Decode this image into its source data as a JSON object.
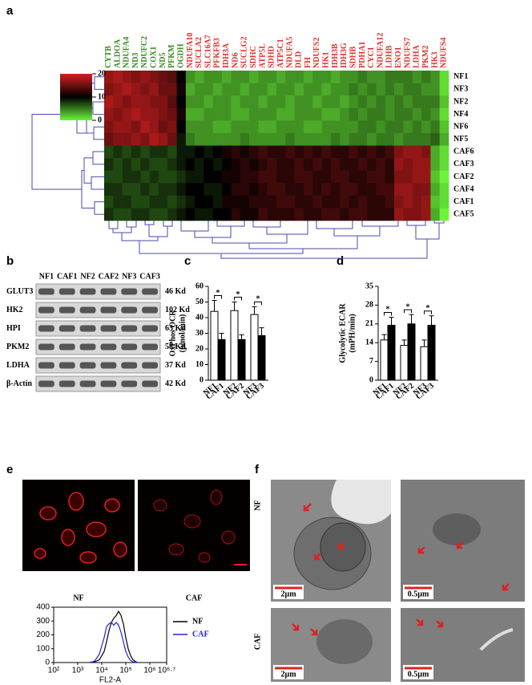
{
  "chart_data": [
    {
      "type": "heatmap",
      "column_groups": [
        {
          "color": "#3a8a1e",
          "labels": [
            "CYTB",
            "ALDOA",
            "NDUFA4",
            "ND3",
            "NDUFC2",
            "COX1",
            "ND5",
            "PFKM",
            "OGDH"
          ]
        },
        {
          "color": "#e0302a",
          "labels": [
            "NDUFA10",
            "SUCLA2",
            "SLC16A7",
            "PFKFB3",
            "IDH3A",
            "ND6",
            "SUCLG2",
            "SDHC",
            "ATP5L",
            "SDHD",
            "ATP5C1",
            "NDUFA5",
            "DLD",
            "FH",
            "NDUFS2",
            "HK1",
            "IDH3B",
            "IDH3G",
            "SDHB",
            "PDHA1",
            "CYC1",
            "NDUFA12",
            "LDHB",
            "ENO1",
            "NDUFS7",
            "LDHA",
            "PKM2",
            "HK3",
            "NDUFS4"
          ]
        }
      ],
      "rows": [
        "NF1",
        "NF3",
        "NF2",
        "NF4",
        "NF6",
        "NF5",
        "CAF6",
        "CAF3",
        "CAF2",
        "CAF4",
        "CAF1",
        "CAF5"
      ],
      "values": [
        [
          17,
          18,
          17,
          16,
          17,
          16,
          15,
          14,
          10,
          4,
          3,
          4,
          4,
          3,
          4,
          4,
          3,
          4,
          4,
          3,
          4,
          4,
          3,
          4,
          4,
          3,
          4,
          4,
          5,
          4,
          4,
          5,
          5,
          5,
          4,
          5,
          4,
          1
        ],
        [
          16,
          17,
          18,
          17,
          16,
          17,
          15,
          15,
          11,
          3,
          4,
          4,
          3,
          4,
          4,
          3,
          4,
          4,
          3,
          4,
          4,
          3,
          4,
          4,
          3,
          4,
          4,
          5,
          4,
          5,
          4,
          5,
          4,
          5,
          5,
          4,
          4,
          1
        ],
        [
          18,
          17,
          16,
          17,
          17,
          16,
          16,
          14,
          10,
          4,
          4,
          3,
          4,
          4,
          3,
          4,
          4,
          3,
          4,
          4,
          3,
          4,
          4,
          3,
          4,
          4,
          3,
          4,
          5,
          4,
          5,
          4,
          5,
          4,
          5,
          5,
          5,
          2
        ],
        [
          17,
          16,
          17,
          18,
          17,
          17,
          16,
          15,
          11,
          3,
          3,
          4,
          4,
          4,
          3,
          3,
          4,
          4,
          4,
          3,
          3,
          4,
          4,
          4,
          3,
          3,
          4,
          5,
          4,
          5,
          5,
          4,
          5,
          5,
          4,
          5,
          4,
          1
        ],
        [
          16,
          17,
          17,
          16,
          18,
          17,
          15,
          16,
          10,
          4,
          4,
          4,
          3,
          3,
          4,
          4,
          4,
          3,
          3,
          4,
          4,
          4,
          3,
          3,
          4,
          4,
          4,
          4,
          5,
          5,
          4,
          5,
          5,
          4,
          5,
          4,
          5,
          2
        ],
        [
          15,
          16,
          16,
          17,
          16,
          18,
          17,
          15,
          9,
          5,
          4,
          4,
          4,
          4,
          4,
          5,
          4,
          4,
          4,
          4,
          5,
          4,
          4,
          4,
          4,
          5,
          4,
          5,
          5,
          4,
          5,
          5,
          4,
          5,
          5,
          5,
          6,
          3
        ],
        [
          7,
          8,
          7,
          8,
          7,
          8,
          8,
          7,
          9,
          9,
          10,
          9,
          10,
          11,
          12,
          11,
          12,
          13,
          12,
          12,
          13,
          12,
          13,
          12,
          13,
          12,
          12,
          13,
          12,
          13,
          12,
          13,
          16,
          17,
          17,
          16,
          3,
          1
        ],
        [
          8,
          7,
          8,
          7,
          8,
          7,
          7,
          8,
          9,
          10,
          9,
          10,
          9,
          10,
          11,
          12,
          11,
          12,
          13,
          12,
          12,
          13,
          12,
          13,
          12,
          13,
          12,
          12,
          13,
          12,
          13,
          12,
          17,
          16,
          17,
          17,
          3,
          1
        ],
        [
          7,
          7,
          8,
          8,
          7,
          8,
          7,
          7,
          8,
          9,
          9,
          10,
          10,
          11,
          11,
          12,
          12,
          13,
          13,
          12,
          12,
          13,
          13,
          12,
          12,
          13,
          13,
          12,
          12,
          13,
          13,
          12,
          16,
          16,
          17,
          17,
          2,
          0
        ],
        [
          8,
          8,
          7,
          7,
          8,
          7,
          8,
          8,
          9,
          10,
          10,
          9,
          9,
          10,
          12,
          12,
          11,
          12,
          13,
          13,
          12,
          12,
          13,
          12,
          13,
          12,
          13,
          13,
          12,
          12,
          13,
          13,
          17,
          17,
          16,
          16,
          3,
          1
        ],
        [
          7,
          8,
          8,
          7,
          7,
          8,
          8,
          7,
          8,
          9,
          10,
          10,
          9,
          11,
          11,
          11,
          12,
          12,
          12,
          13,
          13,
          12,
          12,
          13,
          12,
          12,
          13,
          12,
          13,
          12,
          12,
          13,
          16,
          17,
          16,
          17,
          2,
          1
        ],
        [
          8,
          7,
          7,
          8,
          8,
          7,
          7,
          8,
          9,
          10,
          9,
          9,
          10,
          10,
          12,
          11,
          11,
          13,
          12,
          12,
          12,
          13,
          12,
          12,
          13,
          13,
          12,
          13,
          13,
          12,
          12,
          12,
          17,
          16,
          16,
          17,
          3,
          0
        ]
      ],
      "zlim": [
        0,
        20
      ],
      "zticks": [
        0,
        10,
        20
      ],
      "colors": [
        "#6cf43a",
        "#000000",
        "#d42020"
      ]
    },
    {
      "type": "bar",
      "categories": [
        "NF1",
        "CAF1",
        "NF2",
        "CAF2",
        "NF3",
        "CAF3"
      ],
      "values": [
        44,
        26,
        44.5,
        26,
        42,
        28.5
      ],
      "errors": [
        7,
        4,
        5.5,
        3,
        5,
        5
      ],
      "colors": [
        "#ffffff",
        "#000000",
        "#ffffff",
        "#000000",
        "#ffffff",
        "#000000"
      ],
      "y_label": [
        "OxPhos OCR",
        "(pmol/min)"
      ],
      "ylim": [
        0,
        60
      ],
      "yticks": [
        0,
        10,
        20,
        30,
        40,
        50,
        60
      ],
      "significance": [
        "*",
        "*",
        "*"
      ]
    },
    {
      "type": "bar",
      "categories": [
        "NF1",
        "CAF1",
        "NF2",
        "CAF2",
        "NF3",
        "CAF3"
      ],
      "values": [
        15,
        20.5,
        13,
        21,
        12.5,
        20.5
      ],
      "errors": [
        2,
        3,
        2,
        3.5,
        2.5,
        3.5
      ],
      "colors": [
        "#ffffff",
        "#000000",
        "#ffffff",
        "#000000",
        "#ffffff",
        "#000000"
      ],
      "y_label": [
        "Glycolytic ECAR",
        "(mPH/min)"
      ],
      "ylim": [
        0,
        35
      ],
      "yticks": [
        0,
        7,
        14,
        21,
        28,
        35
      ],
      "significance": [
        "*",
        "*",
        "*"
      ]
    },
    {
      "type": "line",
      "log_x": true,
      "x_label": "FL2-A",
      "x": [
        3162,
        5012,
        7943,
        12589,
        15849,
        19953,
        25119,
        31623,
        39811,
        50119,
        63096,
        79433,
        100000,
        125893,
        158489,
        199526,
        251189,
        316228
      ],
      "series": [
        {
          "name": "NF",
          "color": "#000000",
          "values": [
            0,
            5,
            20,
            80,
            150,
            230,
            290,
            320,
            340,
            370,
            340,
            280,
            180,
            100,
            50,
            20,
            8,
            0
          ]
        },
        {
          "name": "CAF",
          "color": "#2222dd",
          "values": [
            0,
            10,
            60,
            180,
            260,
            280,
            290,
            270,
            290,
            270,
            220,
            150,
            80,
            40,
            15,
            5,
            2,
            0
          ]
        }
      ],
      "xlim": [
        100,
        5011872
      ],
      "xticks": [
        {
          "value": 100,
          "label": "10²"
        },
        {
          "value": 1000,
          "label": "10³"
        },
        {
          "value": 10000,
          "label": "10⁴"
        },
        {
          "value": 100000,
          "label": "10⁵"
        },
        {
          "value": 1000000,
          "label": "10⁶"
        },
        {
          "value": 5011872,
          "label": "10⁶·⁷"
        }
      ],
      "ylim": [
        0,
        400
      ],
      "yticks": [
        0,
        100,
        200,
        300,
        400
      ],
      "legend": "upper right"
    }
  ],
  "panel_labels": [
    "a",
    "b",
    "c",
    "d",
    "e",
    "f"
  ],
  "blot": {
    "lanes": [
      "NF1",
      "CAF1",
      "NF2",
      "CAF2",
      "NF3",
      "CAF3"
    ],
    "proteins": [
      "GLUT3",
      "HK2",
      "HPI",
      "PKM2",
      "LDHA",
      "β-Actin"
    ],
    "sizes": [
      "46 Kd",
      "102 Kd",
      "63 Kd",
      "58 Kd",
      "37 Kd",
      "42 Kd"
    ]
  },
  "fluorescence": {
    "labels": [
      "NF",
      "CAF"
    ]
  },
  "electron_microscopy": {
    "row_labels": [
      "NF",
      "CAF"
    ],
    "scale_bars": [
      "2µm",
      "0.5µm",
      "2µm",
      "0.5µm"
    ]
  }
}
